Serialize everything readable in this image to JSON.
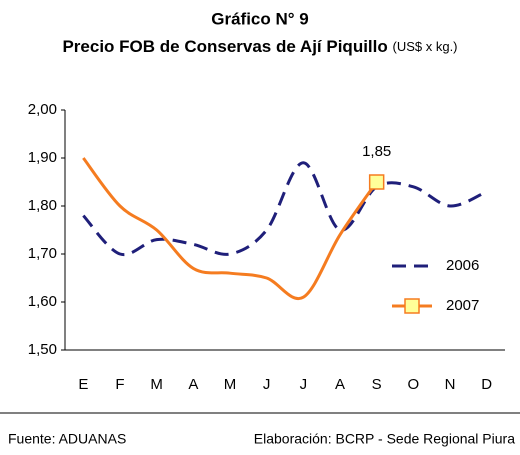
{
  "chart_data": {
    "type": "line",
    "title": "Gráfico N° 9",
    "subtitle": "Precio FOB de Conservas de Ají Piquillo",
    "unit": "(US$ x kg.)",
    "categories": [
      "E",
      "F",
      "M",
      "A",
      "M",
      "J",
      "J",
      "A",
      "S",
      "O",
      "N",
      "D"
    ],
    "series": [
      {
        "name": "2006",
        "color": "#1f1f7a",
        "values": [
          1.78,
          1.7,
          1.73,
          1.72,
          1.7,
          1.75,
          1.89,
          1.75,
          1.84,
          1.84,
          1.8,
          1.83
        ]
      },
      {
        "name": "2007",
        "color": "#f57c20",
        "values": [
          1.9,
          1.8,
          1.75,
          1.67,
          1.66,
          1.65,
          1.61,
          1.74,
          1.85,
          null,
          null,
          null
        ],
        "value_labels": [
          null,
          null,
          null,
          null,
          null,
          null,
          null,
          null,
          "1,85",
          null,
          null,
          null
        ]
      }
    ],
    "ylim": [
      1.5,
      2.0
    ],
    "yticks": [
      {
        "value": 1.5,
        "label": "1,50"
      },
      {
        "value": 1.6,
        "label": "1,60"
      },
      {
        "value": 1.7,
        "label": "1,70"
      },
      {
        "value": 1.8,
        "label": "1,80"
      },
      {
        "value": 1.9,
        "label": "1,90"
      },
      {
        "value": 2.0,
        "label": "2,00"
      }
    ],
    "grid": false,
    "source": "Fuente: ADUANAS",
    "credit": "Elaboración: BCRP - Sede Regional Piura"
  }
}
